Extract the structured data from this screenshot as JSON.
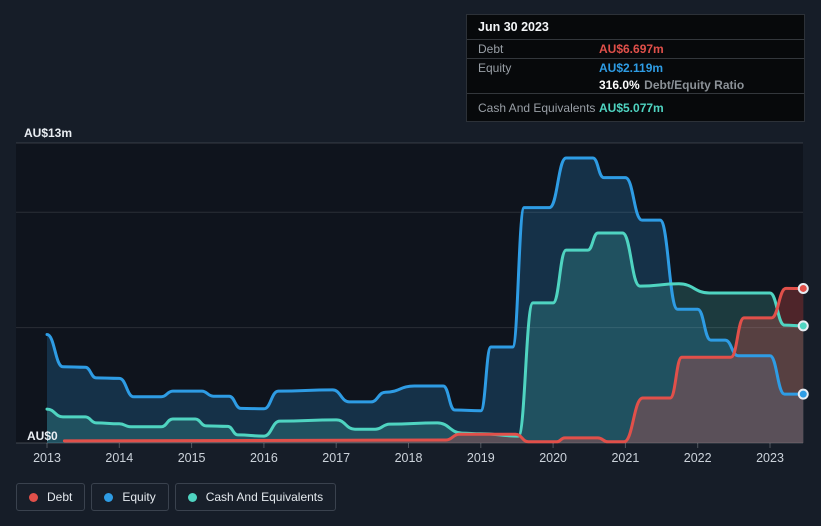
{
  "tooltip": {
    "date": "Jun 30 2023",
    "debt_label": "Debt",
    "debt_value": "AU$6.697m",
    "equity_label": "Equity",
    "equity_value": "AU$2.119m",
    "ratio_value": "316.0%",
    "ratio_label": "Debt/Equity Ratio",
    "cash_label": "Cash And Equivalents",
    "cash_value": "AU$5.077m"
  },
  "chart_data": {
    "type": "area",
    "unit": "AU$ millions",
    "x_ticks": [
      "2013",
      "2014",
      "2015",
      "2016",
      "2017",
      "2018",
      "2019",
      "2020",
      "2021",
      "2022",
      "2023"
    ],
    "y_axis": {
      "min": 0,
      "max": 13,
      "max_label": "AU$13m",
      "zero_label": "AU$0",
      "gridline_values": [
        0,
        5,
        10,
        13
      ]
    },
    "legend_position": "bottom",
    "series": [
      {
        "name": "Debt",
        "color": "#e1504a",
        "fill_opacity": 0.3,
        "end_value": 6.697,
        "points": [
          [
            2013.24,
            0.09
          ],
          [
            2018.52,
            0.13
          ],
          [
            2018.7,
            0.38
          ],
          [
            2019.48,
            0.38
          ],
          [
            2019.66,
            0.05
          ],
          [
            2020.05,
            0.05
          ],
          [
            2020.16,
            0.22
          ],
          [
            2020.62,
            0.22
          ],
          [
            2020.76,
            0.05
          ],
          [
            2020.98,
            0.05
          ],
          [
            2021.24,
            1.95
          ],
          [
            2021.62,
            1.95
          ],
          [
            2021.78,
            3.72
          ],
          [
            2022.46,
            3.72
          ],
          [
            2022.64,
            5.42
          ],
          [
            2023.02,
            5.42
          ],
          [
            2023.22,
            6.7
          ],
          [
            2023.46,
            6.697
          ]
        ]
      },
      {
        "name": "Equity",
        "color": "#2e9ce4",
        "fill_opacity": 0.22,
        "end_value": 2.119,
        "points": [
          [
            2013.0,
            4.7
          ],
          [
            2013.22,
            3.3
          ],
          [
            2013.53,
            3.28
          ],
          [
            2013.68,
            2.82
          ],
          [
            2014.0,
            2.8
          ],
          [
            2014.2,
            2.0
          ],
          [
            2014.58,
            2.0
          ],
          [
            2014.74,
            2.25
          ],
          [
            2015.14,
            2.25
          ],
          [
            2015.3,
            2.03
          ],
          [
            2015.52,
            2.03
          ],
          [
            2015.68,
            1.5
          ],
          [
            2016.0,
            1.48
          ],
          [
            2016.2,
            2.25
          ],
          [
            2016.95,
            2.3
          ],
          [
            2017.18,
            1.78
          ],
          [
            2017.48,
            1.78
          ],
          [
            2017.68,
            2.2
          ],
          [
            2018.08,
            2.47
          ],
          [
            2018.48,
            2.47
          ],
          [
            2018.64,
            1.43
          ],
          [
            2019.0,
            1.4
          ],
          [
            2019.14,
            4.16
          ],
          [
            2019.44,
            4.16
          ],
          [
            2019.6,
            10.2
          ],
          [
            2019.95,
            10.2
          ],
          [
            2020.18,
            12.35
          ],
          [
            2020.55,
            12.35
          ],
          [
            2020.7,
            11.5
          ],
          [
            2021.0,
            11.5
          ],
          [
            2021.23,
            9.66
          ],
          [
            2021.48,
            9.66
          ],
          [
            2021.72,
            5.8
          ],
          [
            2022.0,
            5.8
          ],
          [
            2022.18,
            4.46
          ],
          [
            2022.38,
            4.46
          ],
          [
            2022.56,
            3.78
          ],
          [
            2023.0,
            3.78
          ],
          [
            2023.2,
            2.12
          ],
          [
            2023.46,
            2.119
          ]
        ]
      },
      {
        "name": "Cash And Equivalents",
        "color": "#4fd4c1",
        "fill_opacity": 0.2,
        "end_value": 5.077,
        "points": [
          [
            2013.0,
            1.47
          ],
          [
            2013.22,
            1.13
          ],
          [
            2013.53,
            1.13
          ],
          [
            2013.68,
            0.87
          ],
          [
            2014.0,
            0.83
          ],
          [
            2014.16,
            0.7
          ],
          [
            2014.58,
            0.7
          ],
          [
            2014.74,
            1.04
          ],
          [
            2015.05,
            1.04
          ],
          [
            2015.2,
            0.74
          ],
          [
            2015.5,
            0.72
          ],
          [
            2015.64,
            0.35
          ],
          [
            2016.0,
            0.3
          ],
          [
            2016.22,
            0.95
          ],
          [
            2017.0,
            1.0
          ],
          [
            2017.26,
            0.6
          ],
          [
            2017.54,
            0.6
          ],
          [
            2017.74,
            0.82
          ],
          [
            2018.4,
            0.87
          ],
          [
            2018.74,
            0.43
          ],
          [
            2019.0,
            0.4
          ],
          [
            2019.52,
            0.3
          ],
          [
            2019.72,
            6.07
          ],
          [
            2020.0,
            6.07
          ],
          [
            2020.18,
            8.36
          ],
          [
            2020.48,
            8.36
          ],
          [
            2020.62,
            9.1
          ],
          [
            2020.96,
            9.1
          ],
          [
            2021.2,
            6.8
          ],
          [
            2021.74,
            6.9
          ],
          [
            2022.16,
            6.5
          ],
          [
            2023.0,
            6.5
          ],
          [
            2023.2,
            5.11
          ],
          [
            2023.46,
            5.077
          ]
        ]
      }
    ]
  }
}
